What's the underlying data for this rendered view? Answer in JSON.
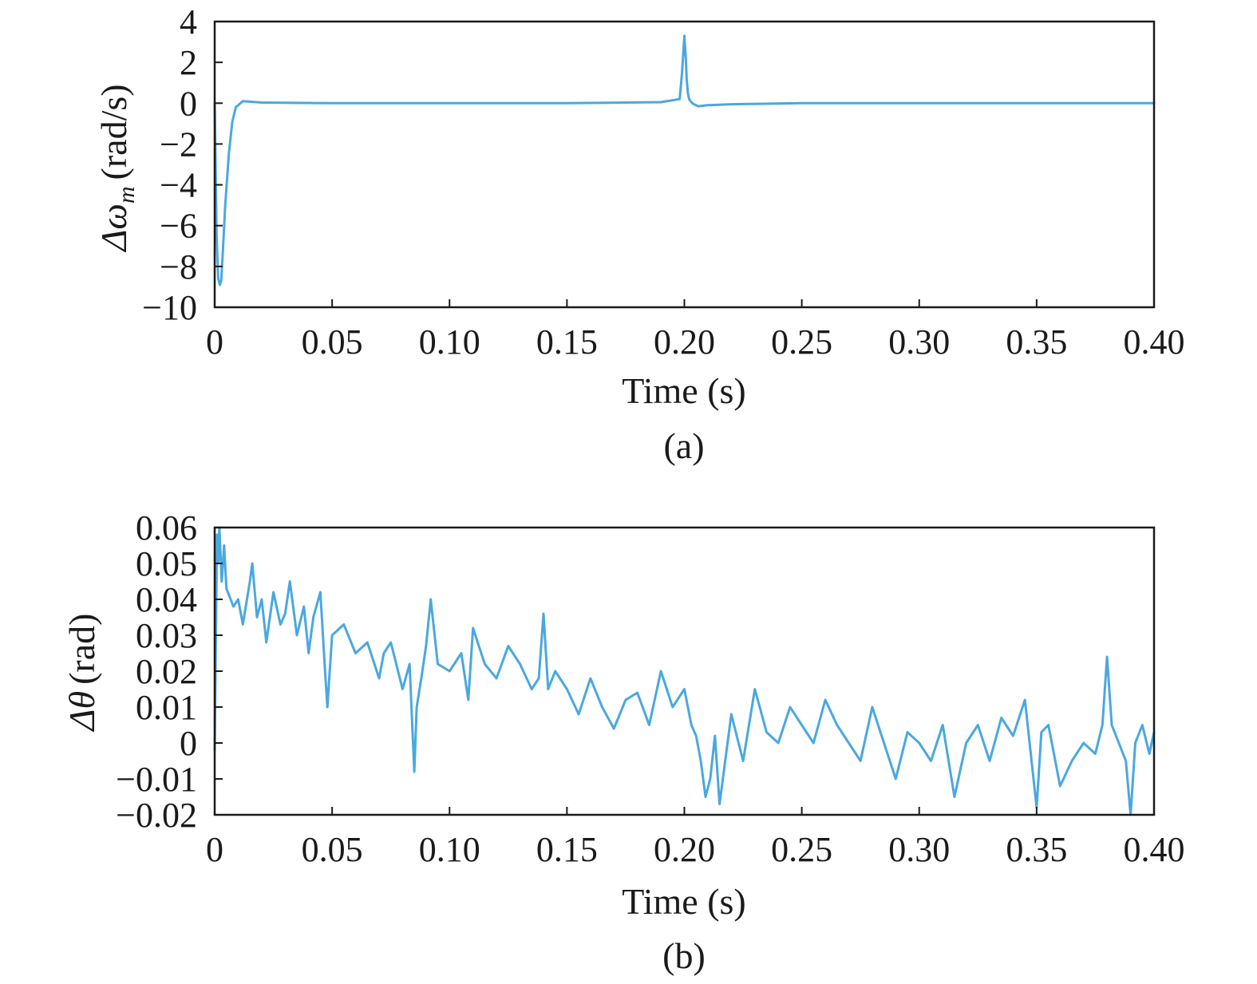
{
  "colors": {
    "series": "#4aa8e0",
    "axis": "#1a1a1a"
  },
  "chart_data": [
    {
      "type": "line",
      "caption": "(a)",
      "xlabel": "Time (s)",
      "ylabel": "Δω_m (rad/s)",
      "ylabel_parts": {
        "symbol": "Δω",
        "subscript": "m",
        "unit": "(rad/s)"
      },
      "xlim": [
        0,
        0.4
      ],
      "ylim": [
        -10,
        4
      ],
      "xticks": [
        0,
        0.05,
        0.1,
        0.15,
        0.2,
        0.25,
        0.3,
        0.35,
        0.4
      ],
      "xtick_labels": [
        "0",
        "0.05",
        "0.10",
        "0.15",
        "0.20",
        "0.25",
        "0.30",
        "0.35",
        "0.40"
      ],
      "yticks": [
        -10,
        -8,
        -6,
        -4,
        -2,
        0,
        2,
        4
      ],
      "ytick_labels": [
        "−10",
        "−8",
        "−6",
        "−4",
        "−2",
        "0",
        "2",
        "4"
      ],
      "grid": false,
      "series": [
        {
          "x": [
            0,
            0.0008,
            0.0015,
            0.0022,
            0.0028,
            0.0035,
            0.0045,
            0.006,
            0.0075,
            0.009,
            0.012,
            0.02,
            0.05,
            0.1,
            0.15,
            0.19,
            0.198,
            0.199,
            0.2,
            0.2006,
            0.201,
            0.2015,
            0.202,
            0.203,
            0.204,
            0.206,
            0.21,
            0.22,
            0.25,
            0.3,
            0.35,
            0.4
          ],
          "y": [
            0,
            -6.5,
            -8.6,
            -8.9,
            -8.7,
            -7.2,
            -5.0,
            -2.5,
            -0.9,
            -0.2,
            0.1,
            0.03,
            0.0,
            0.0,
            0.0,
            0.05,
            0.2,
            1.5,
            3.3,
            2.2,
            1.2,
            0.5,
            0.2,
            0.05,
            -0.05,
            -0.15,
            -0.1,
            -0.05,
            0.0,
            0.0,
            0.0,
            0.0
          ]
        }
      ]
    },
    {
      "type": "line",
      "caption": "(b)",
      "xlabel": "Time (s)",
      "ylabel": "Δθ (rad)",
      "ylabel_parts": {
        "symbol": "Δθ",
        "subscript": "",
        "unit": "(rad)"
      },
      "xlim": [
        0,
        0.4
      ],
      "ylim": [
        -0.02,
        0.06
      ],
      "xticks": [
        0,
        0.05,
        0.1,
        0.15,
        0.2,
        0.25,
        0.3,
        0.35,
        0.4
      ],
      "xtick_labels": [
        "0",
        "0.05",
        "0.10",
        "0.15",
        "0.20",
        "0.25",
        "0.30",
        "0.35",
        "0.40"
      ],
      "yticks": [
        -0.02,
        -0.01,
        0,
        0.01,
        0.02,
        0.03,
        0.04,
        0.05,
        0.06
      ],
      "ytick_labels": [
        "−0.02",
        "−0.01",
        "0",
        "0.01",
        "0.02",
        "0.03",
        "0.04",
        "0.05",
        "0.06"
      ],
      "grid": false,
      "series": [
        {
          "x": [
            0,
            0.0005,
            0.001,
            0.0015,
            0.002,
            0.003,
            0.004,
            0.005,
            0.008,
            0.01,
            0.012,
            0.015,
            0.016,
            0.018,
            0.02,
            0.022,
            0.025,
            0.028,
            0.03,
            0.032,
            0.035,
            0.038,
            0.04,
            0.042,
            0.045,
            0.047,
            0.048,
            0.05,
            0.055,
            0.06,
            0.065,
            0.07,
            0.072,
            0.075,
            0.08,
            0.083,
            0.085,
            0.086,
            0.088,
            0.09,
            0.092,
            0.095,
            0.1,
            0.105,
            0.108,
            0.11,
            0.115,
            0.12,
            0.125,
            0.13,
            0.135,
            0.138,
            0.14,
            0.142,
            0.145,
            0.15,
            0.155,
            0.16,
            0.165,
            0.17,
            0.175,
            0.18,
            0.185,
            0.19,
            0.195,
            0.2,
            0.203,
            0.205,
            0.207,
            0.209,
            0.211,
            0.213,
            0.215,
            0.22,
            0.225,
            0.23,
            0.235,
            0.24,
            0.245,
            0.25,
            0.255,
            0.26,
            0.265,
            0.27,
            0.275,
            0.28,
            0.285,
            0.29,
            0.295,
            0.3,
            0.305,
            0.31,
            0.315,
            0.32,
            0.325,
            0.33,
            0.335,
            0.34,
            0.345,
            0.35,
            0.352,
            0.355,
            0.36,
            0.365,
            0.37,
            0.375,
            0.378,
            0.38,
            0.382,
            0.385,
            0.388,
            0.39,
            0.392,
            0.395,
            0.398,
            0.4
          ],
          "y": [
            -0.002,
            0.03,
            0.058,
            0.05,
            0.06,
            0.045,
            0.055,
            0.043,
            0.038,
            0.04,
            0.033,
            0.045,
            0.05,
            0.035,
            0.04,
            0.028,
            0.042,
            0.033,
            0.036,
            0.045,
            0.03,
            0.038,
            0.025,
            0.035,
            0.042,
            0.02,
            0.01,
            0.03,
            0.033,
            0.025,
            0.028,
            0.018,
            0.025,
            0.028,
            0.015,
            0.022,
            -0.008,
            0.01,
            0.018,
            0.027,
            0.04,
            0.022,
            0.02,
            0.025,
            0.012,
            0.032,
            0.022,
            0.018,
            0.027,
            0.022,
            0.015,
            0.018,
            0.036,
            0.015,
            0.02,
            0.015,
            0.008,
            0.018,
            0.01,
            0.004,
            0.012,
            0.014,
            0.005,
            0.02,
            0.01,
            0.015,
            0.005,
            0.002,
            -0.005,
            -0.015,
            -0.01,
            0.002,
            -0.017,
            0.008,
            -0.005,
            0.015,
            0.003,
            0.0,
            0.01,
            0.005,
            0.0,
            0.012,
            0.005,
            0.0,
            -0.005,
            0.01,
            0.0,
            -0.01,
            0.003,
            0.0,
            -0.005,
            0.005,
            -0.015,
            0.0,
            0.005,
            -0.005,
            0.007,
            0.002,
            0.012,
            -0.018,
            0.003,
            0.005,
            -0.012,
            -0.005,
            0.0,
            -0.003,
            0.005,
            0.024,
            0.005,
            0.0,
            -0.005,
            -0.02,
            0.0,
            0.005,
            -0.003,
            0.003
          ]
        }
      ]
    }
  ]
}
